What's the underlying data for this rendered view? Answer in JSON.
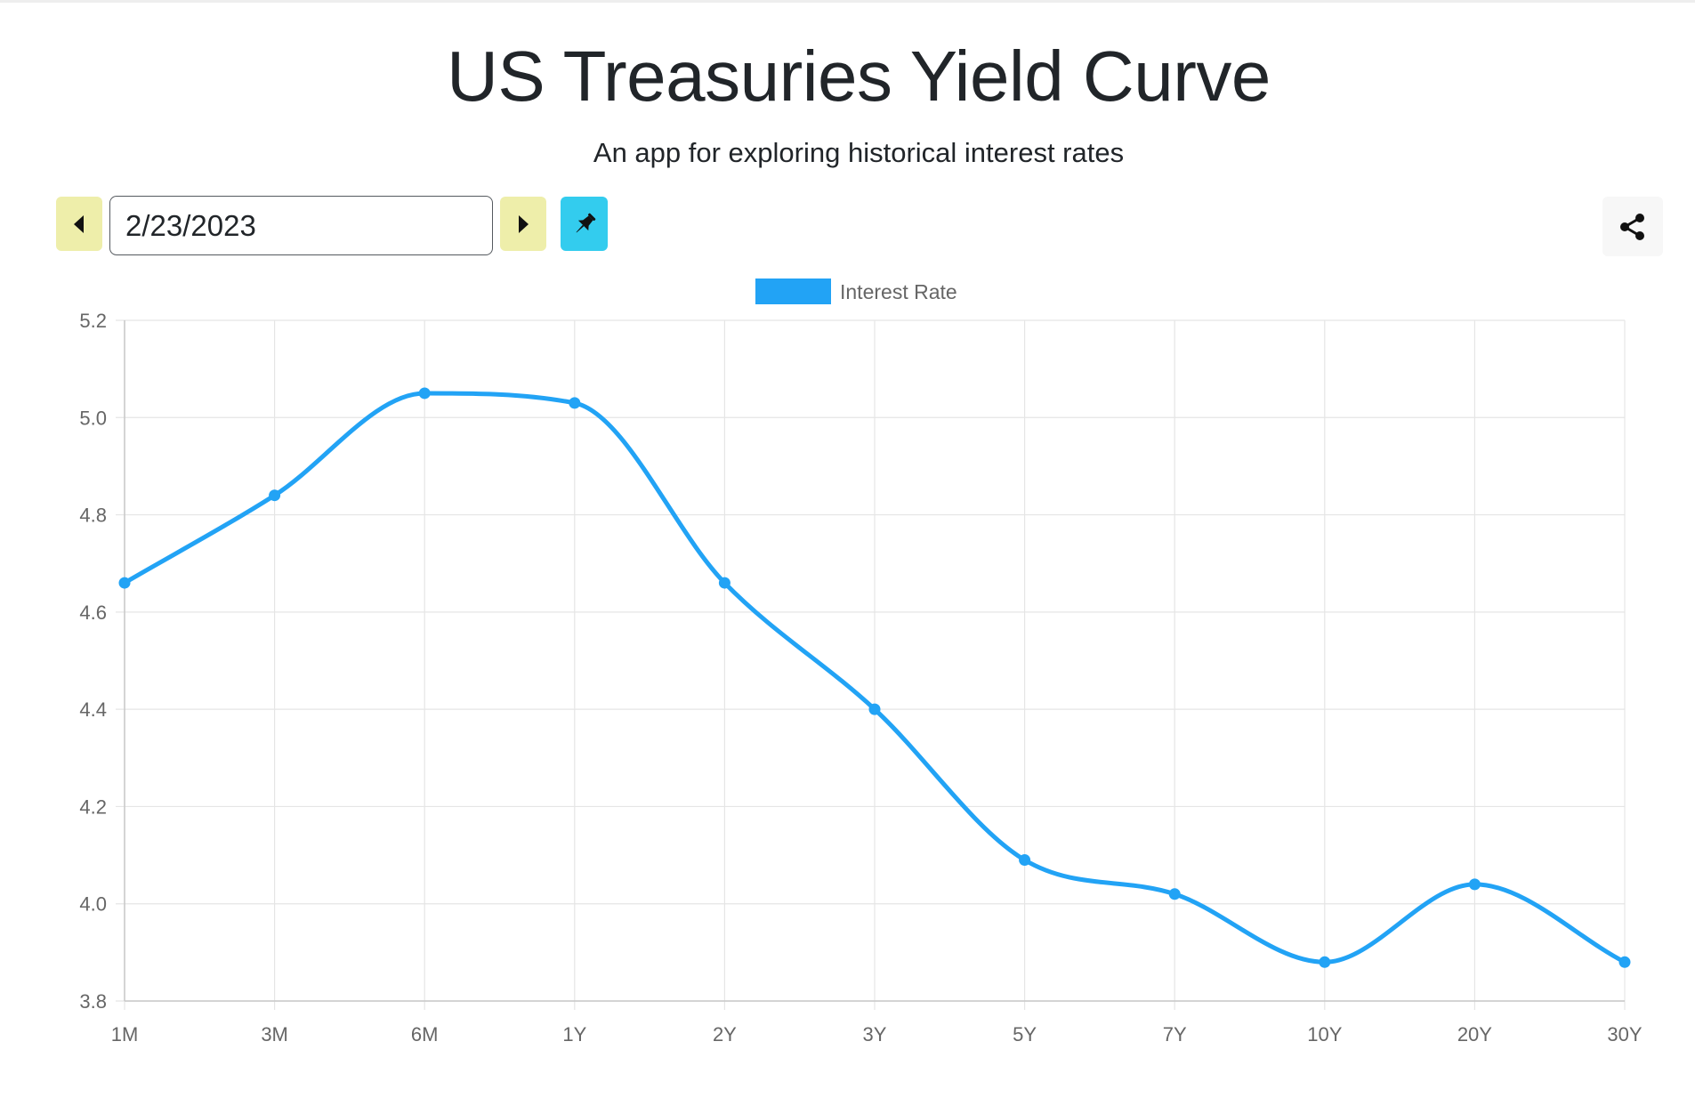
{
  "header": {
    "title": "US Treasuries Yield Curve",
    "subtitle": "An app for exploring historical interest rates"
  },
  "controls": {
    "date_value": "2/23/2023",
    "prev_icon": "caret-left-icon",
    "next_icon": "caret-right-icon",
    "pin_icon": "pushpin-icon",
    "share_icon": "share-icon"
  },
  "colors": {
    "series": "#22a3f5",
    "nav_button": "#eeeeaa",
    "pin_button": "#33ccee",
    "share_button": "#f7f7f7",
    "grid": "#e5e5e5",
    "tick_text": "#666666"
  },
  "chart_data": {
    "type": "line",
    "title": "",
    "xlabel": "",
    "ylabel": "",
    "categories": [
      "1M",
      "3M",
      "6M",
      "1Y",
      "2Y",
      "3Y",
      "5Y",
      "7Y",
      "10Y",
      "20Y",
      "30Y"
    ],
    "series": [
      {
        "name": "Interest Rate",
        "values": [
          4.66,
          4.84,
          5.05,
          5.03,
          4.66,
          4.4,
          4.09,
          4.02,
          3.88,
          4.04,
          3.88
        ]
      }
    ],
    "ylim": [
      3.8,
      5.2
    ],
    "yticks": [
      "3.8",
      "4.0",
      "4.2",
      "4.4",
      "4.6",
      "4.8",
      "5.0",
      "5.2"
    ],
    "grid": true,
    "legend_position": "top-center",
    "curve": "smooth"
  }
}
